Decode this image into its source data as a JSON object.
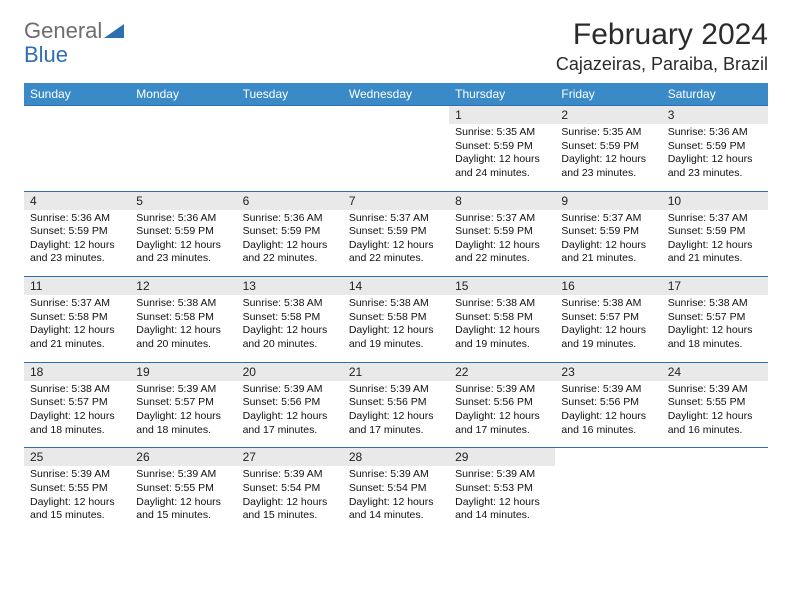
{
  "brand": {
    "part1": "General",
    "part2": "Blue"
  },
  "title": "February 2024",
  "location": "Cajazeiras, Paraiba, Brazil",
  "colors": {
    "header_bg": "#3a8ac8",
    "row_divider": "#2f6fb0",
    "daynum_bg": "#e9e9e9",
    "text": "#111111",
    "title_text": "#2b2b2b"
  },
  "typography": {
    "title_fontsize": 30,
    "location_fontsize": 18,
    "header_fontsize": 12,
    "body_fontsize": 10.5
  },
  "day_headers": [
    "Sunday",
    "Monday",
    "Tuesday",
    "Wednesday",
    "Thursday",
    "Friday",
    "Saturday"
  ],
  "weeks": [
    [
      {
        "n": "",
        "sr": "",
        "ss": "",
        "dl": ""
      },
      {
        "n": "",
        "sr": "",
        "ss": "",
        "dl": ""
      },
      {
        "n": "",
        "sr": "",
        "ss": "",
        "dl": ""
      },
      {
        "n": "",
        "sr": "",
        "ss": "",
        "dl": ""
      },
      {
        "n": "1",
        "sr": "5:35 AM",
        "ss": "5:59 PM",
        "dl": "12 hours and 24 minutes."
      },
      {
        "n": "2",
        "sr": "5:35 AM",
        "ss": "5:59 PM",
        "dl": "12 hours and 23 minutes."
      },
      {
        "n": "3",
        "sr": "5:36 AM",
        "ss": "5:59 PM",
        "dl": "12 hours and 23 minutes."
      }
    ],
    [
      {
        "n": "4",
        "sr": "5:36 AM",
        "ss": "5:59 PM",
        "dl": "12 hours and 23 minutes."
      },
      {
        "n": "5",
        "sr": "5:36 AM",
        "ss": "5:59 PM",
        "dl": "12 hours and 23 minutes."
      },
      {
        "n": "6",
        "sr": "5:36 AM",
        "ss": "5:59 PM",
        "dl": "12 hours and 22 minutes."
      },
      {
        "n": "7",
        "sr": "5:37 AM",
        "ss": "5:59 PM",
        "dl": "12 hours and 22 minutes."
      },
      {
        "n": "8",
        "sr": "5:37 AM",
        "ss": "5:59 PM",
        "dl": "12 hours and 22 minutes."
      },
      {
        "n": "9",
        "sr": "5:37 AM",
        "ss": "5:59 PM",
        "dl": "12 hours and 21 minutes."
      },
      {
        "n": "10",
        "sr": "5:37 AM",
        "ss": "5:59 PM",
        "dl": "12 hours and 21 minutes."
      }
    ],
    [
      {
        "n": "11",
        "sr": "5:37 AM",
        "ss": "5:58 PM",
        "dl": "12 hours and 21 minutes."
      },
      {
        "n": "12",
        "sr": "5:38 AM",
        "ss": "5:58 PM",
        "dl": "12 hours and 20 minutes."
      },
      {
        "n": "13",
        "sr": "5:38 AM",
        "ss": "5:58 PM",
        "dl": "12 hours and 20 minutes."
      },
      {
        "n": "14",
        "sr": "5:38 AM",
        "ss": "5:58 PM",
        "dl": "12 hours and 19 minutes."
      },
      {
        "n": "15",
        "sr": "5:38 AM",
        "ss": "5:58 PM",
        "dl": "12 hours and 19 minutes."
      },
      {
        "n": "16",
        "sr": "5:38 AM",
        "ss": "5:57 PM",
        "dl": "12 hours and 19 minutes."
      },
      {
        "n": "17",
        "sr": "5:38 AM",
        "ss": "5:57 PM",
        "dl": "12 hours and 18 minutes."
      }
    ],
    [
      {
        "n": "18",
        "sr": "5:38 AM",
        "ss": "5:57 PM",
        "dl": "12 hours and 18 minutes."
      },
      {
        "n": "19",
        "sr": "5:39 AM",
        "ss": "5:57 PM",
        "dl": "12 hours and 18 minutes."
      },
      {
        "n": "20",
        "sr": "5:39 AM",
        "ss": "5:56 PM",
        "dl": "12 hours and 17 minutes."
      },
      {
        "n": "21",
        "sr": "5:39 AM",
        "ss": "5:56 PM",
        "dl": "12 hours and 17 minutes."
      },
      {
        "n": "22",
        "sr": "5:39 AM",
        "ss": "5:56 PM",
        "dl": "12 hours and 17 minutes."
      },
      {
        "n": "23",
        "sr": "5:39 AM",
        "ss": "5:56 PM",
        "dl": "12 hours and 16 minutes."
      },
      {
        "n": "24",
        "sr": "5:39 AM",
        "ss": "5:55 PM",
        "dl": "12 hours and 16 minutes."
      }
    ],
    [
      {
        "n": "25",
        "sr": "5:39 AM",
        "ss": "5:55 PM",
        "dl": "12 hours and 15 minutes."
      },
      {
        "n": "26",
        "sr": "5:39 AM",
        "ss": "5:55 PM",
        "dl": "12 hours and 15 minutes."
      },
      {
        "n": "27",
        "sr": "5:39 AM",
        "ss": "5:54 PM",
        "dl": "12 hours and 15 minutes."
      },
      {
        "n": "28",
        "sr": "5:39 AM",
        "ss": "5:54 PM",
        "dl": "12 hours and 14 minutes."
      },
      {
        "n": "29",
        "sr": "5:39 AM",
        "ss": "5:53 PM",
        "dl": "12 hours and 14 minutes."
      },
      {
        "n": "",
        "sr": "",
        "ss": "",
        "dl": ""
      },
      {
        "n": "",
        "sr": "",
        "ss": "",
        "dl": ""
      }
    ]
  ],
  "labels": {
    "sunrise": "Sunrise: ",
    "sunset": "Sunset: ",
    "daylight": "Daylight: "
  }
}
